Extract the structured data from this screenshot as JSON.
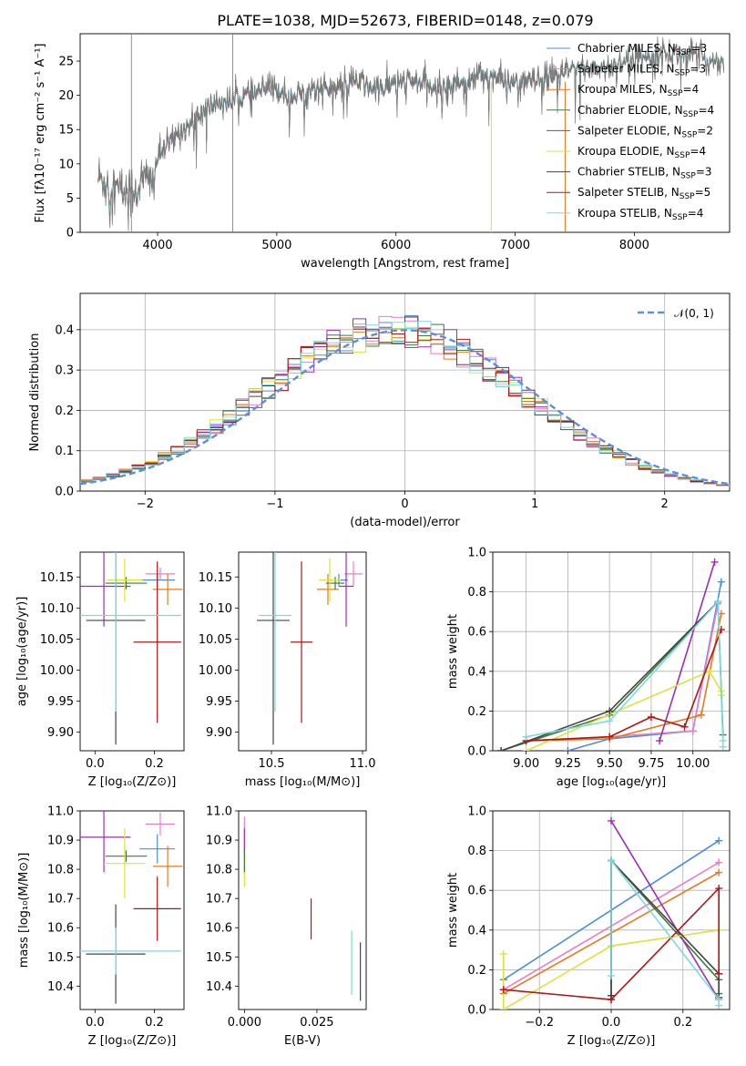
{
  "figure": {
    "title": "PLATE=1038, MJD=52673, FIBERID=0148, z=0.079"
  },
  "chart_data": [
    {
      "id": "spectrum",
      "type": "line",
      "xlabel": "wavelength [Angstrom, rest frame]",
      "ylabel": "Flux [fλ10⁻¹⁷ erg cm⁻² s⁻¹ A⁻¹]",
      "xlim": [
        3350,
        8800
      ],
      "ylim": [
        0,
        29
      ],
      "xticks": [
        4000,
        5000,
        6000,
        7000,
        8000
      ],
      "yticks": [
        0,
        5,
        10,
        15,
        20,
        25
      ],
      "grid": false,
      "legend_position": "right",
      "data_flux_x": [
        3500,
        3600,
        3700,
        3800,
        3900,
        3950,
        4000,
        4100,
        4200,
        4300,
        4400,
        4500,
        4600,
        4700,
        4800,
        4900,
        5000,
        5100,
        5200,
        5300,
        5400,
        5500,
        5600,
        5700,
        5800,
        5900,
        6000,
        6100,
        6200,
        6300,
        6400,
        6500,
        6600,
        6700,
        6800,
        6900,
        7000,
        7100,
        7200,
        7300,
        7400,
        7500,
        7600,
        7700,
        7800,
        7900,
        8000,
        8100,
        8200,
        8300,
        8400,
        8500,
        8600,
        8700
      ],
      "data_flux_y": [
        8,
        7,
        6,
        6,
        8,
        7,
        11,
        13,
        15,
        16,
        18,
        19,
        19,
        20,
        20,
        21,
        21,
        20,
        20,
        21,
        21,
        21,
        22,
        22,
        21,
        21,
        22,
        22,
        22,
        21,
        21,
        22,
        22,
        23,
        23,
        22,
        22,
        22,
        22,
        23,
        23,
        24,
        24,
        24,
        24,
        25,
        25,
        26,
        26,
        26,
        26,
        26,
        25,
        25
      ],
      "model_cut_off_x": 7400,
      "series": [
        {
          "name": "Chabrier MILES, N",
          "sub": "SSP",
          "suffix": "=3",
          "color": "#4a8fd6"
        },
        {
          "name": "Salpeter MILES, N",
          "sub": "SSP",
          "suffix": "=3",
          "color": "#e87dc8"
        },
        {
          "name": "Kroupa MILES, N",
          "sub": "SSP",
          "suffix": "=4",
          "color": "#e37a22"
        },
        {
          "name": "Chabrier ELODIE, N",
          "sub": "SSP",
          "suffix": "=4",
          "color": "#3d7a3d"
        },
        {
          "name": "Salpeter ELODIE, N",
          "sub": "SSP",
          "suffix": "=2",
          "color": "#9b2eb5"
        },
        {
          "name": "Kroupa ELODIE, N",
          "sub": "SSP",
          "suffix": "=4",
          "color": "#dce23c"
        },
        {
          "name": "Chabrier STELIB, N",
          "sub": "SSP",
          "suffix": "=3",
          "color": "#444444"
        },
        {
          "name": "Salpeter STELIB, N",
          "sub": "SSP",
          "suffix": "=5",
          "color": "#b01515"
        },
        {
          "name": "Kroupa STELIB, N",
          "sub": "SSP",
          "suffix": "=4",
          "color": "#7fd8e0"
        }
      ]
    },
    {
      "id": "residuals",
      "type": "line",
      "xlabel": "(data-model)/error",
      "ylabel": "Normed distribution",
      "xlim": [
        -2.5,
        2.5
      ],
      "ylim": [
        0,
        0.49
      ],
      "xticks": [
        -2,
        -1,
        0,
        1,
        2
      ],
      "yticks": [
        0.0,
        0.1,
        0.2,
        0.3,
        0.4
      ],
      "grid": true,
      "legend_position": "top-right",
      "legend_label": "𝒩(0, 1)",
      "reference_curve": {
        "name": "N(0,1)",
        "mu": 0,
        "sigma": 1,
        "style": "dashed",
        "color": "#5b8fd9"
      },
      "bin_width": 0.1,
      "histogram_colors": [
        "#4a8fd6",
        "#e87dc8",
        "#e37a22",
        "#3d7a3d",
        "#9b2eb5",
        "#dce23c",
        "#444444",
        "#b01515",
        "#7fd8e0"
      ]
    },
    {
      "id": "age_vs_Z",
      "type": "scatter",
      "xlabel": "Z [log₁₀(Z/Z⊙)]",
      "ylabel": "age  [log₁₀(age/yr)]",
      "xlim": [
        -0.05,
        0.3
      ],
      "ylim": [
        9.87,
        10.19
      ],
      "xticks": [
        0.0,
        0.2
      ],
      "yticks": [
        9.9,
        9.95,
        10.0,
        10.05,
        10.1,
        10.15
      ],
      "points": [
        {
          "x": 0.21,
          "y": 10.145,
          "xerr": 0.06,
          "yerr": 0.01,
          "color": "#4a8fd6"
        },
        {
          "x": 0.22,
          "y": 10.155,
          "xerr": 0.05,
          "yerr": 0.01,
          "color": "#e87dc8"
        },
        {
          "x": 0.245,
          "y": 10.13,
          "xerr": 0.05,
          "yerr": 0.025,
          "color": "#e37a22"
        },
        {
          "x": 0.105,
          "y": 10.14,
          "xerr": 0.07,
          "yerr": 0.01,
          "color": "#3d7a3d"
        },
        {
          "x": 0.03,
          "y": 10.135,
          "xerr": 0.09,
          "yerr": 0.065,
          "color": "#9b2eb5"
        },
        {
          "x": 0.1,
          "y": 10.145,
          "xerr": 0.06,
          "yerr": 0.035,
          "color": "#dce23c"
        },
        {
          "x": 0.07,
          "y": 10.08,
          "xerr": 0.1,
          "yerr": 0.2,
          "color": "#444444"
        },
        {
          "x": 0.21,
          "y": 10.045,
          "xerr": 0.08,
          "yerr": 0.13,
          "color": "#b01515"
        },
        {
          "x": 0.07,
          "y": 10.088,
          "xerr": 0.22,
          "yerr": 0.155,
          "color": "#7fd8e0"
        }
      ]
    },
    {
      "id": "age_vs_mass",
      "type": "scatter",
      "xlabel": "mass [log₁₀(M/M⊙)]",
      "ylabel": "",
      "xlim": [
        10.32,
        11.02
      ],
      "ylim": [
        9.87,
        10.19
      ],
      "xticks": [
        10.5,
        11.0
      ],
      "yticks": [
        9.9,
        9.95,
        10.0,
        10.05,
        10.1,
        10.15
      ],
      "points": [
        {
          "x": 10.87,
          "y": 10.145,
          "xerr": 0.05,
          "yerr": 0.01,
          "color": "#4a8fd6"
        },
        {
          "x": 10.95,
          "y": 10.155,
          "xerr": 0.05,
          "yerr": 0.02,
          "color": "#e87dc8"
        },
        {
          "x": 10.81,
          "y": 10.13,
          "xerr": 0.06,
          "yerr": 0.025,
          "color": "#e37a22"
        },
        {
          "x": 10.85,
          "y": 10.14,
          "xerr": 0.05,
          "yerr": 0.01,
          "color": "#3d7a3d"
        },
        {
          "x": 10.91,
          "y": 10.135,
          "xerr": 0.04,
          "yerr": 0.065,
          "color": "#9b2eb5"
        },
        {
          "x": 10.82,
          "y": 10.145,
          "xerr": 0.06,
          "yerr": 0.035,
          "color": "#dce23c"
        },
        {
          "x": 10.51,
          "y": 10.08,
          "xerr": 0.09,
          "yerr": 0.2,
          "color": "#444444"
        },
        {
          "x": 10.665,
          "y": 10.045,
          "xerr": 0.06,
          "yerr": 0.13,
          "color": "#b01515"
        },
        {
          "x": 10.52,
          "y": 10.088,
          "xerr": 0.09,
          "yerr": 0.155,
          "color": "#7fd8e0"
        }
      ]
    },
    {
      "id": "weight_vs_age",
      "type": "line",
      "xlabel": "age  [log₁₀(age/yr)]",
      "ylabel": "mass weight",
      "xlim": [
        8.8,
        10.22
      ],
      "ylim": [
        0.0,
        1.0
      ],
      "xticks": [
        9.0,
        9.25,
        9.5,
        9.75,
        10.0
      ],
      "yticks": [
        0.0,
        0.2,
        0.4,
        0.6,
        0.8,
        1.0
      ],
      "grid": true,
      "series": [
        {
          "color": "#4a8fd6",
          "x": [
            9.25,
            9.5,
            10.0,
            10.17
          ],
          "y": [
            0.0,
            0.06,
            0.1,
            0.85
          ]
        },
        {
          "color": "#e87dc8",
          "x": [
            9.0,
            9.5,
            10.0,
            10.15
          ],
          "y": [
            0.05,
            0.07,
            0.1,
            0.74
          ]
        },
        {
          "color": "#e37a22",
          "x": [
            9.0,
            9.5,
            10.05,
            10.17
          ],
          "y": [
            0.05,
            0.06,
            0.18,
            0.69
          ]
        },
        {
          "color": "#3d7a3d",
          "x": [
            8.85,
            9.5,
            10.15,
            10.18
          ],
          "y": [
            0.0,
            0.18,
            0.75,
            0.08
          ]
        },
        {
          "color": "#9b2eb5",
          "x": [
            9.8,
            10.13
          ],
          "y": [
            0.05,
            0.95
          ]
        },
        {
          "color": "#dce23c",
          "x": [
            9.0,
            10.1,
            10.17,
            10.17
          ],
          "y": [
            0.0,
            0.4,
            0.3,
            0.28
          ]
        },
        {
          "color": "#444444",
          "x": [
            8.85,
            9.5,
            10.15
          ],
          "y": [
            0.0,
            0.2,
            0.75
          ]
        },
        {
          "color": "#b01515",
          "x": [
            9.0,
            9.5,
            9.75,
            9.95,
            10.17
          ],
          "y": [
            0.05,
            0.07,
            0.17,
            0.12,
            0.61
          ]
        },
        {
          "color": "#7fd8e0",
          "x": [
            9.0,
            9.5,
            10.15,
            10.18,
            10.18
          ],
          "y": [
            0.07,
            0.15,
            0.75,
            0.05,
            0.02
          ]
        }
      ]
    },
    {
      "id": "mass_vs_Z",
      "type": "scatter",
      "xlabel": "Z [log₁₀(Z/Z⊙)]",
      "ylabel": "mass [log₁₀(M/M⊙)]",
      "xlim": [
        -0.05,
        0.3
      ],
      "ylim": [
        10.32,
        11.0
      ],
      "xticks": [
        0.0,
        0.2
      ],
      "yticks": [
        10.4,
        10.5,
        10.6,
        10.7,
        10.8,
        10.9,
        11.0
      ],
      "points": [
        {
          "x": 0.21,
          "y": 10.87,
          "xerr": 0.06,
          "yerr": 0.05,
          "color": "#4a8fd6"
        },
        {
          "x": 0.22,
          "y": 10.955,
          "xerr": 0.05,
          "yerr": 0.04,
          "color": "#e87dc8"
        },
        {
          "x": 0.245,
          "y": 10.81,
          "xerr": 0.05,
          "yerr": 0.07,
          "color": "#e37a22"
        },
        {
          "x": 0.105,
          "y": 10.845,
          "xerr": 0.07,
          "yerr": 0.02,
          "color": "#3d7a3d"
        },
        {
          "x": 0.03,
          "y": 10.91,
          "xerr": 0.09,
          "yerr": 0.12,
          "color": "#9b2eb5"
        },
        {
          "x": 0.1,
          "y": 10.82,
          "xerr": 0.07,
          "yerr": 0.12,
          "color": "#dce23c"
        },
        {
          "x": 0.07,
          "y": 10.51,
          "xerr": 0.1,
          "yerr": 0.17,
          "color": "#444444"
        },
        {
          "x": 0.21,
          "y": 10.665,
          "xerr": 0.08,
          "yerr": 0.11,
          "color": "#b01515"
        },
        {
          "x": 0.07,
          "y": 10.52,
          "xerr": 0.22,
          "yerr": 0.08,
          "color": "#7fd8e0"
        }
      ]
    },
    {
      "id": "mass_vs_EBV",
      "type": "scatter",
      "xlabel": "E(B-V)",
      "ylabel": "",
      "xlim": [
        -0.002,
        0.042
      ],
      "ylim": [
        10.32,
        11.0
      ],
      "xticks": [
        0.0,
        0.025
      ],
      "yticks": [
        10.4,
        10.5,
        10.6,
        10.7,
        10.8,
        10.9,
        11.0
      ],
      "points": [
        {
          "x": 0.0,
          "y": 10.92,
          "xerr": 0,
          "yerr": 0.06,
          "color": "#e87dc8"
        },
        {
          "x": 0.0,
          "y": 10.89,
          "xerr": 0,
          "yerr": 0.05,
          "color": "#9b2eb5"
        },
        {
          "x": 0.0,
          "y": 10.8,
          "xerr": 0,
          "yerr": 0.06,
          "color": "#dce23c"
        },
        {
          "x": 0.0,
          "y": 10.83,
          "xerr": 0,
          "yerr": 0.04,
          "color": "#3d7a3d"
        },
        {
          "x": 0.023,
          "y": 10.63,
          "xerr": 0,
          "yerr": 0.07,
          "color": "#b01515"
        },
        {
          "x": 0.037,
          "y": 10.48,
          "xerr": 0,
          "yerr": 0.11,
          "color": "#7fd8e0"
        },
        {
          "x": 0.04,
          "y": 10.45,
          "xerr": 0,
          "yerr": 0.1,
          "color": "#444444"
        }
      ]
    },
    {
      "id": "weight_vs_Z",
      "type": "line",
      "xlabel": "Z [log₁₀(Z/Z⊙)]",
      "ylabel": "mass weight",
      "xlim": [
        -0.33,
        0.33
      ],
      "ylim": [
        0.0,
        1.0
      ],
      "xticks": [
        -0.2,
        0.0,
        0.2
      ],
      "yticks": [
        0.0,
        0.2,
        0.4,
        0.6,
        0.8,
        1.0
      ],
      "grid": true,
      "series": [
        {
          "color": "#4a8fd6",
          "x": [
            -0.3,
            0.3
          ],
          "y": [
            0.15,
            0.85
          ]
        },
        {
          "color": "#e87dc8",
          "x": [
            -0.3,
            0.3
          ],
          "y": [
            0.1,
            0.74
          ]
        },
        {
          "color": "#e37a22",
          "x": [
            -0.3,
            0.3
          ],
          "y": [
            0.08,
            0.69
          ]
        },
        {
          "color": "#3d7a3d",
          "x": [
            0.0,
            0.0,
            0.3,
            0.3
          ],
          "y": [
            0.05,
            0.75,
            0.15,
            0.08
          ]
        },
        {
          "color": "#9b2eb5",
          "x": [
            0.0,
            0.3
          ],
          "y": [
            0.95,
            0.05
          ]
        },
        {
          "color": "#dce23c",
          "x": [
            -0.3,
            -0.3,
            0.0,
            0.3
          ],
          "y": [
            0.28,
            0.0,
            0.32,
            0.4
          ]
        },
        {
          "color": "#444444",
          "x": [
            0.0,
            0.0,
            0.3,
            0.3
          ],
          "y": [
            0.07,
            0.75,
            0.18,
            0.06
          ]
        },
        {
          "color": "#b01515",
          "x": [
            -0.3,
            0.0,
            0.3,
            0.3
          ],
          "y": [
            0.1,
            0.05,
            0.61,
            0.18
          ]
        },
        {
          "color": "#7fd8e0",
          "x": [
            0.0,
            0.0,
            0.3,
            0.3
          ],
          "y": [
            0.17,
            0.75,
            0.05,
            0.02
          ]
        }
      ]
    }
  ]
}
